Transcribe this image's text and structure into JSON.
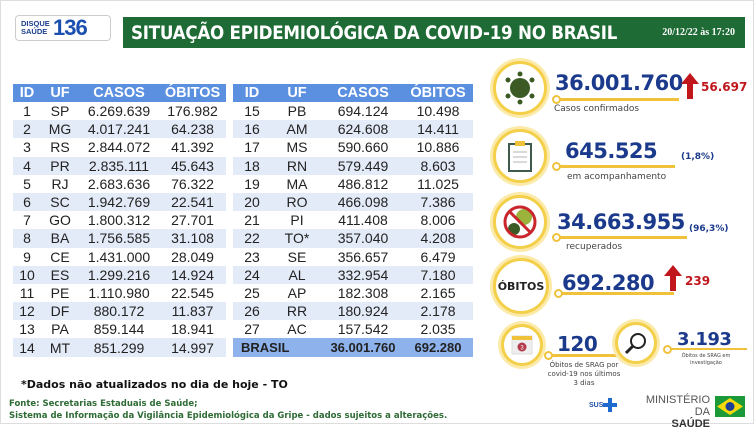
{
  "logo": {
    "line1": "DISQUE",
    "line2": "SAÚDE",
    "number": "136"
  },
  "header": {
    "title": "SITUAÇÃO EPIDEMIOLÓGICA DA COVID-19 NO BRASIL",
    "datetime": "20/12/22 às 17:20"
  },
  "table": {
    "columns": [
      "ID",
      "UF",
      "CASOS",
      "ÓBITOS"
    ],
    "left_rows": [
      [
        "1",
        "SP",
        "6.269.639",
        "176.982"
      ],
      [
        "2",
        "MG",
        "4.017.241",
        "64.238"
      ],
      [
        "3",
        "RS",
        "2.844.072",
        "41.392"
      ],
      [
        "4",
        "PR",
        "2.835.111",
        "45.643"
      ],
      [
        "5",
        "RJ",
        "2.683.636",
        "76.322"
      ],
      [
        "6",
        "SC",
        "1.942.769",
        "22.541"
      ],
      [
        "7",
        "GO",
        "1.800.312",
        "27.701"
      ],
      [
        "8",
        "BA",
        "1.756.585",
        "31.108"
      ],
      [
        "9",
        "CE",
        "1.431.000",
        "28.049"
      ],
      [
        "10",
        "ES",
        "1.299.216",
        "14.924"
      ],
      [
        "11",
        "PE",
        "1.110.980",
        "22.545"
      ],
      [
        "12",
        "DF",
        "880.172",
        "11.837"
      ],
      [
        "13",
        "PA",
        "859.144",
        "18.941"
      ],
      [
        "14",
        "MT",
        "851.299",
        "14.997"
      ]
    ],
    "right_rows": [
      [
        "15",
        "PB",
        "694.124",
        "10.498"
      ],
      [
        "16",
        "AM",
        "624.608",
        "14.411"
      ],
      [
        "17",
        "MS",
        "590.660",
        "10.886"
      ],
      [
        "18",
        "RN",
        "579.449",
        "8.603"
      ],
      [
        "19",
        "MA",
        "486.812",
        "11.025"
      ],
      [
        "20",
        "RO",
        "466.098",
        "7.386"
      ],
      [
        "21",
        "PI",
        "411.408",
        "8.006"
      ],
      [
        "22",
        "TO*",
        "357.040",
        "4.208"
      ],
      [
        "23",
        "SE",
        "356.657",
        "6.479"
      ],
      [
        "24",
        "AL",
        "332.954",
        "7.180"
      ],
      [
        "25",
        "AP",
        "182.308",
        "2.165"
      ],
      [
        "26",
        "RR",
        "180.924",
        "2.178"
      ],
      [
        "27",
        "AC",
        "157.542",
        "2.035"
      ]
    ],
    "total": {
      "label": "BRASIL",
      "casos": "36.001.760",
      "obitos": "692.280"
    }
  },
  "footnote": "*Dados não atualizados no dia de hoje - TO",
  "source": {
    "line1": "Fonte: Secretarias Estaduais de Saúde;",
    "line2": "Sistema de Informação da Vigilância Epidemiológica da Gripe - dados sujeitos a alterações."
  },
  "stats": {
    "confirmed": {
      "value": "36.001.760",
      "delta": "56.697",
      "label": "Casos confirmados",
      "icon": "virus-icon"
    },
    "monitoring": {
      "value": "645.525",
      "pct": "(1,8%)",
      "label": "em acompanhamento",
      "icon": "clipboard-icon"
    },
    "recovered": {
      "value": "34.663.955",
      "pct": "(96,3%)",
      "label": "recuperados",
      "icon": "no-virus-icon"
    },
    "deaths": {
      "badge": "ÓBITOS",
      "value": "692.280",
      "delta": "239"
    },
    "srag": {
      "value": "120",
      "label1": "Óbitos de SRAG por",
      "label2": "covid-19 nos últimos",
      "label3": "3 dias",
      "calendar": "3",
      "icon": "calendar-icon"
    },
    "investigation": {
      "value": "3.193",
      "label1": "Óbitos de SRAG em",
      "label2": "investigação",
      "icon": "magnifier-icon"
    }
  },
  "brand": {
    "sus": "SUS",
    "ministry1": "MINISTÉRIO DA",
    "ministry2": "SAÚDE"
  },
  "colors": {
    "header_green": "#1e6b35",
    "table_header": "#5b8fe0",
    "value_blue": "#1b3a8c",
    "increase_red": "#c0161c",
    "accent_yellow": "#f3cf4a"
  }
}
